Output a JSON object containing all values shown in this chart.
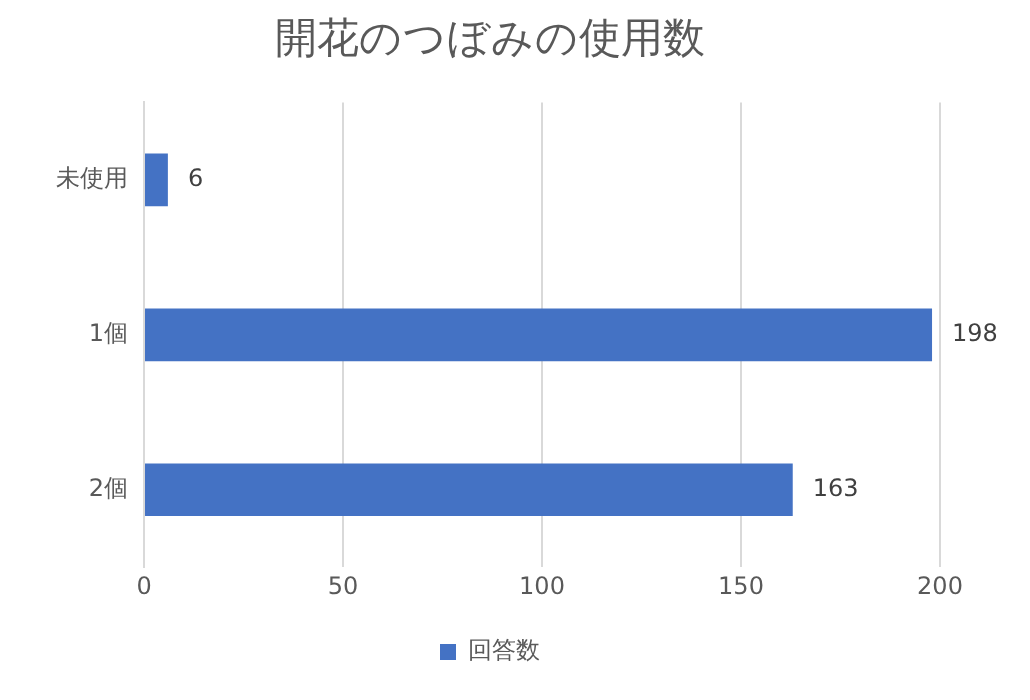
{
  "chart_data": {
    "type": "bar",
    "orientation": "horizontal",
    "title": "開花のつぼみの使用数",
    "categories": [
      "未使用",
      "1個",
      "2個"
    ],
    "series": [
      {
        "name": "回答数",
        "color": "#4472c4",
        "values": [
          6,
          198,
          163
        ]
      }
    ],
    "xlim": [
      0,
      200
    ],
    "xticks": [
      0,
      50,
      100,
      150,
      200
    ],
    "grid": "x",
    "legend": "bottom",
    "data_labels": true
  }
}
